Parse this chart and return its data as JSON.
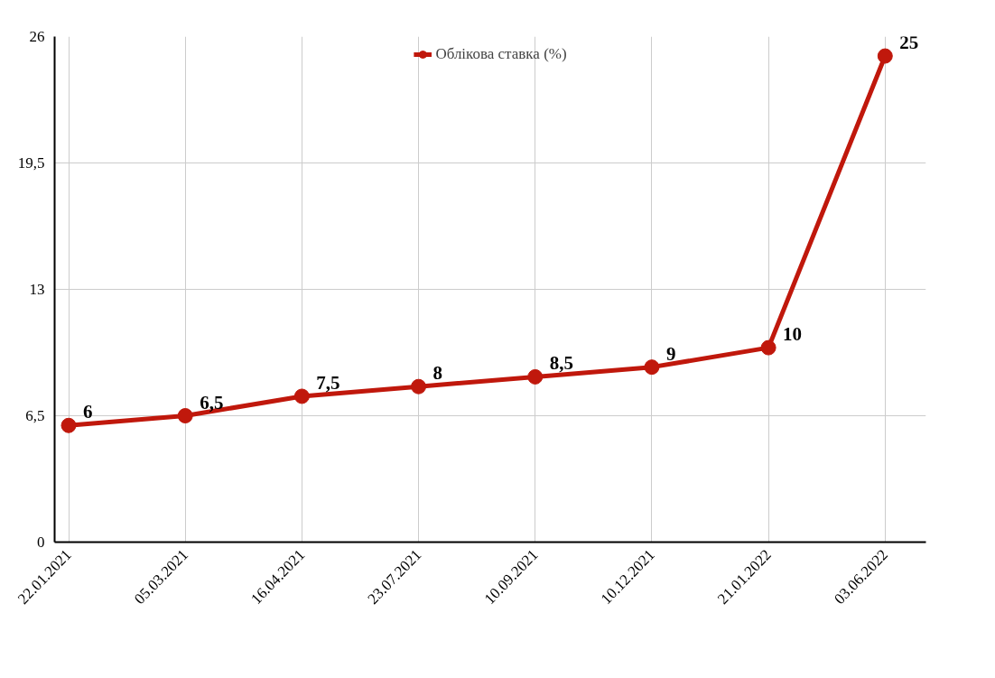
{
  "chart_data": {
    "type": "line",
    "categories": [
      "22.01.2021",
      "05.03.2021",
      "16.04.2021",
      "23.07.2021",
      "10.09.2021",
      "10.12.2021",
      "21.01.2022",
      "03.06.2022"
    ],
    "series": [
      {
        "name": "Облікова ставка (%)",
        "color": "#c0180c",
        "values": [
          6,
          6.5,
          7.5,
          8,
          8.5,
          9,
          10,
          25
        ],
        "value_labels": [
          "6",
          "6,5",
          "7,5",
          "8",
          "8,5",
          "9",
          "10",
          "25"
        ]
      }
    ],
    "ylim": [
      0,
      26
    ],
    "yticks": [
      0,
      {
        "value": 6.5,
        "label": "6,5"
      },
      13,
      {
        "value": 19.5,
        "label": "19,5"
      },
      26
    ],
    "grid": true,
    "legend": "top",
    "marker": "circle",
    "line_style": "solid"
  }
}
